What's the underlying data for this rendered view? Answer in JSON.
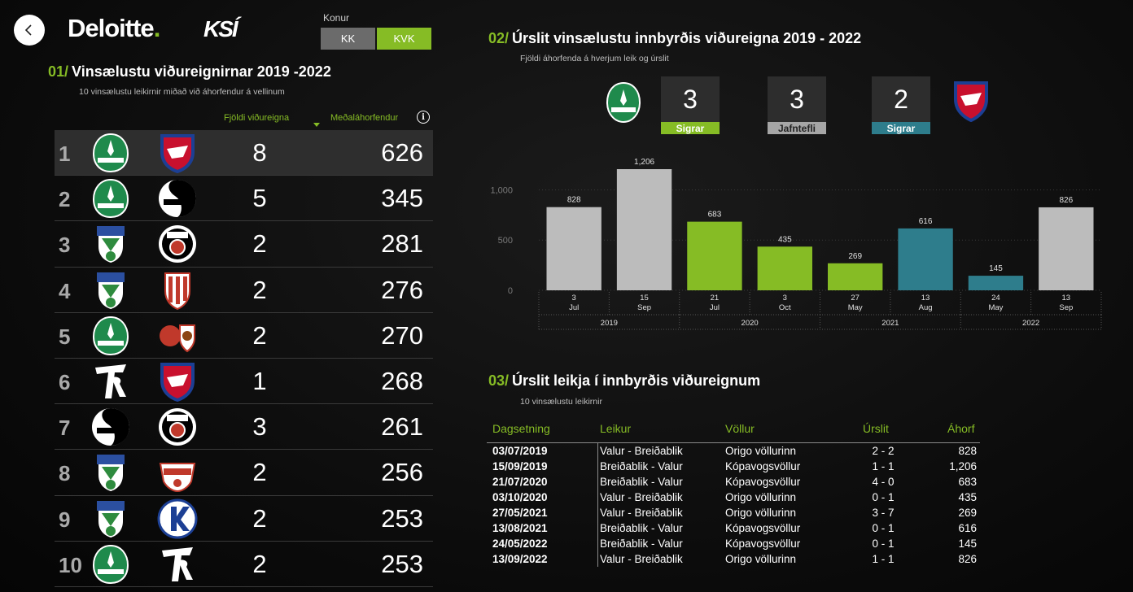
{
  "header": {
    "brand": "Deloitte",
    "brand_dot": ".",
    "federation": "KSÍ",
    "toggle_label": "Konur",
    "toggle_options": [
      "KK",
      "KVK"
    ],
    "toggle_selected": "KVK"
  },
  "section1": {
    "number": "01/",
    "title": "Vinsælustu viðureignirnar 2019 -2022",
    "subtitle": "10 vinsælustu leikirnir miðað við áhorfendur á vellinum",
    "col_matches": "Fjöldi viðureigna",
    "col_attendance": "Meðaláhorfendur",
    "rows": [
      {
        "rank": "1",
        "team1": "Breiðablik",
        "team2": "Valur",
        "matches": "8",
        "attendance": "626"
      },
      {
        "rank": "2",
        "team1": "Breiðablik",
        "team2": "Fylkir",
        "matches": "5",
        "attendance": "345"
      },
      {
        "rank": "3",
        "team1": "UMFA",
        "team2": "KR",
        "matches": "2",
        "attendance": "281"
      },
      {
        "rank": "4",
        "team1": "UMFA",
        "team2": "ÍBV",
        "matches": "2",
        "attendance": "276"
      },
      {
        "rank": "5",
        "team1": "Breiðablik",
        "team2": "HK",
        "matches": "2",
        "attendance": "270"
      },
      {
        "rank": "6",
        "team1": "Fram",
        "team2": "Valur",
        "matches": "1",
        "attendance": "268"
      },
      {
        "rank": "7",
        "team1": "Fylkir",
        "team2": "KR",
        "matches": "3",
        "attendance": "261"
      },
      {
        "rank": "8",
        "team1": "UMFA",
        "team2": "Selfoss",
        "matches": "2",
        "attendance": "256"
      },
      {
        "rank": "9",
        "team1": "UMFA",
        "team2": "Keflavík",
        "matches": "2",
        "attendance": "253"
      },
      {
        "rank": "10",
        "team1": "Breiðablik",
        "team2": "Fram",
        "matches": "2",
        "attendance": "253"
      }
    ]
  },
  "section2": {
    "number": "02/",
    "title": "Úrslit vinsælustu innbyrðis viðureigna 2019 - 2022",
    "subtitle": "Fjöldi áhorfenda á hverjum leik og úrslit",
    "summary": [
      {
        "value": "3",
        "label": "Sigrar",
        "color": "#86bc25"
      },
      {
        "value": "3",
        "label": "Jafntefli",
        "color": "#a6a6a6"
      },
      {
        "value": "2",
        "label": "Sigrar",
        "color": "#2e7d8c"
      }
    ]
  },
  "chart_data": {
    "type": "bar",
    "title": "Úrslit vinsælustu innbyrðis viðureigna 2019 - 2022",
    "ylim": [
      0,
      1206
    ],
    "yticks": [
      0,
      500,
      1000
    ],
    "ytick_labels": [
      "0",
      "500",
      "1,000"
    ],
    "grid": true,
    "categories": [
      {
        "day": "3",
        "month": "Jul",
        "year": "2019"
      },
      {
        "day": "15",
        "month": "Sep",
        "year": "2019"
      },
      {
        "day": "21",
        "month": "Jul",
        "year": "2020"
      },
      {
        "day": "3",
        "month": "Oct",
        "year": "2020"
      },
      {
        "day": "27",
        "month": "May",
        "year": "2021"
      },
      {
        "day": "13",
        "month": "Aug",
        "year": "2021"
      },
      {
        "day": "24",
        "month": "May",
        "year": "2022"
      },
      {
        "day": "13",
        "month": "Sep",
        "year": "2022"
      }
    ],
    "values": [
      828,
      1206,
      683,
      435,
      269,
      616,
      145,
      826
    ],
    "value_labels": [
      "828",
      "1,206",
      "683",
      "435",
      "269",
      "616",
      "145",
      "826"
    ],
    "bar_colors": [
      "#bcbcbc",
      "#bcbcbc",
      "#86bc25",
      "#86bc25",
      "#86bc25",
      "#2e7d8c",
      "#2e7d8c",
      "#bcbcbc"
    ],
    "years": [
      "2019",
      "2020",
      "2021",
      "2022"
    ]
  },
  "section3": {
    "number": "03/",
    "title": "Úrslit leikja í innbyrðis viðureignum",
    "subtitle": "10 vinsælustu leikirnir",
    "headers": {
      "date": "Dagsetning",
      "game": "Leikur",
      "venue": "Völlur",
      "score": "Úrslit",
      "attendance": "Áhorf"
    },
    "rows": [
      {
        "date": "03/07/2019",
        "game": "Valur - Breiðablik",
        "venue": "Origo völlurinn",
        "score": "2 - 2",
        "attendance": "828"
      },
      {
        "date": "15/09/2019",
        "game": "Breiðablik - Valur",
        "venue": "Kópavogsvöllur",
        "score": "1 - 1",
        "attendance": "1,206"
      },
      {
        "date": "21/07/2020",
        "game": "Breiðablik - Valur",
        "venue": "Kópavogsvöllur",
        "score": "4 - 0",
        "attendance": "683"
      },
      {
        "date": "03/10/2020",
        "game": "Valur - Breiðablik",
        "venue": "Origo völlurinn",
        "score": "0 - 1",
        "attendance": "435"
      },
      {
        "date": "27/05/2021",
        "game": "Valur - Breiðablik",
        "venue": "Origo völlurinn",
        "score": "3 - 7",
        "attendance": "269"
      },
      {
        "date": "13/08/2021",
        "game": "Breiðablik - Valur",
        "venue": "Kópavogsvöllur",
        "score": "0 - 1",
        "attendance": "616"
      },
      {
        "date": "24/05/2022",
        "game": "Breiðablik - Valur",
        "venue": "Kópavogsvöllur",
        "score": "0 - 1",
        "attendance": "145"
      },
      {
        "date": "13/09/2022",
        "game": "Valur - Breiðablik",
        "venue": "Origo völlurinn",
        "score": "1 - 1",
        "attendance": "826"
      }
    ]
  }
}
